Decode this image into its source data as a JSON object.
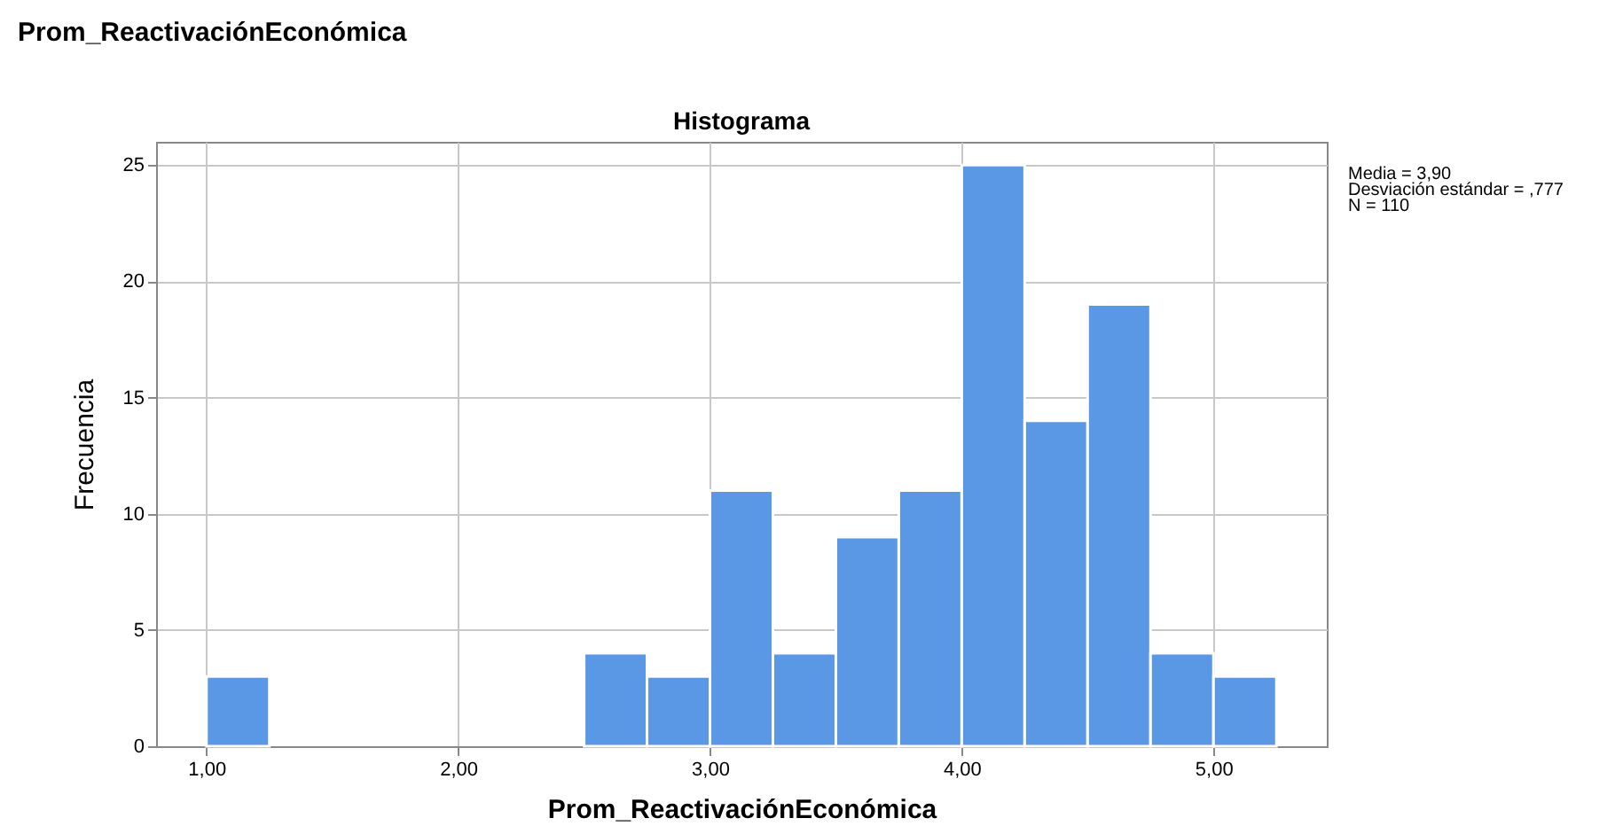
{
  "chart_data": {
    "type": "histogram",
    "title": "Histograma",
    "xlabel": "Prom_ReactivaciónEconómica",
    "ylabel": "Frecuencia",
    "bins": [
      1.0,
      1.25,
      1.5,
      1.75,
      2.0,
      2.25,
      2.5,
      2.75,
      3.0,
      3.25,
      3.5,
      3.75,
      4.0,
      4.25,
      4.5,
      4.75,
      5.0,
      5.25
    ],
    "values": [
      3,
      0,
      0,
      0,
      0,
      0,
      4,
      3,
      11,
      4,
      9,
      11,
      25,
      14,
      19,
      4,
      3
    ],
    "color": "#5a98e6",
    "xlim": [
      0.8,
      5.45
    ],
    "ylim": [
      0,
      26
    ],
    "xticks": [
      {
        "value": 1,
        "label": "1,00"
      },
      {
        "value": 2,
        "label": "2,00"
      },
      {
        "value": 3,
        "label": "3,00"
      },
      {
        "value": 4,
        "label": "4,00"
      },
      {
        "value": 5,
        "label": "5,00"
      }
    ],
    "yticks": [
      0,
      5,
      10,
      15,
      20,
      25
    ],
    "grid": true,
    "annotations": [
      "Prom_ReactivaciónEconómica",
      "Media = 3,90",
      "Desviación estándar = ,777",
      "N = 110"
    ]
  }
}
